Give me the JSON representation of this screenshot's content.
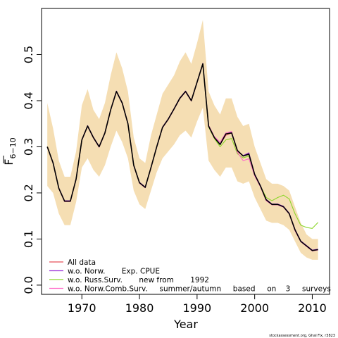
{
  "chart_data": {
    "type": "line",
    "xlabel": "Year",
    "ylabel_main": "F",
    "ylabel_sub": "6−10",
    "xlim": [
      1963,
      2013
    ],
    "ylim": [
      -0.02,
      0.6
    ],
    "x_ticks": [
      1970,
      1980,
      1990,
      2000,
      2010
    ],
    "y_ticks": [
      0.0,
      0.1,
      0.2,
      0.3,
      0.4,
      0.5
    ],
    "y_tick_labels": [
      "0.0",
      "0.1",
      "0.2",
      "0.3",
      "0.4",
      "0.5"
    ],
    "footer": "stockassessment.org, Ghal Fix, r3823",
    "band": {
      "color": "#f5deb3",
      "x": [
        1964,
        1965,
        1966,
        1967,
        1968,
        1969,
        1970,
        1971,
        1972,
        1973,
        1974,
        1975,
        1976,
        1977,
        1978,
        1979,
        1980,
        1981,
        1982,
        1983,
        1984,
        1985,
        1986,
        1987,
        1988,
        1989,
        1990,
        1991,
        1992,
        1993,
        1994,
        1995,
        1996,
        1997,
        1998,
        1999,
        2000,
        2001,
        2002,
        2003,
        2004,
        2005,
        2006,
        2007,
        2008,
        2009,
        2010,
        2011
      ],
      "upper": [
        0.395,
        0.34,
        0.27,
        0.235,
        0.235,
        0.29,
        0.39,
        0.425,
        0.38,
        0.36,
        0.395,
        0.455,
        0.505,
        0.47,
        0.42,
        0.32,
        0.275,
        0.265,
        0.325,
        0.37,
        0.415,
        0.435,
        0.455,
        0.485,
        0.505,
        0.48,
        0.525,
        0.575,
        0.42,
        0.39,
        0.37,
        0.405,
        0.405,
        0.365,
        0.345,
        0.35,
        0.3,
        0.265,
        0.23,
        0.22,
        0.22,
        0.215,
        0.205,
        0.17,
        0.135,
        0.11,
        0.1,
        0.1
      ],
      "lower": [
        0.215,
        0.2,
        0.155,
        0.13,
        0.13,
        0.18,
        0.255,
        0.275,
        0.25,
        0.235,
        0.26,
        0.3,
        0.335,
        0.31,
        0.275,
        0.205,
        0.175,
        0.165,
        0.205,
        0.245,
        0.275,
        0.29,
        0.305,
        0.325,
        0.335,
        0.32,
        0.355,
        0.385,
        0.27,
        0.25,
        0.235,
        0.255,
        0.255,
        0.225,
        0.22,
        0.225,
        0.19,
        0.165,
        0.14,
        0.135,
        0.135,
        0.13,
        0.12,
        0.095,
        0.07,
        0.06,
        0.055,
        0.055
      ]
    },
    "series": [
      {
        "name": "All data",
        "color": "#e8505b",
        "x": [
          1964,
          1965,
          1966,
          1967,
          1968,
          1969,
          1970,
          1971,
          1972,
          1973,
          1974,
          1975,
          1976,
          1977,
          1978,
          1979,
          1980,
          1981,
          1982,
          1983,
          1984,
          1985,
          1986,
          1987,
          1988,
          1989,
          1990,
          1991,
          1992,
          1993,
          1994,
          1995,
          1996,
          1997,
          1998,
          1999,
          2000,
          2001,
          2002,
          2003,
          2004,
          2005,
          2006,
          2007,
          2008,
          2009,
          2010,
          2011
        ],
        "values": [
          0.3,
          0.265,
          0.21,
          0.182,
          0.182,
          0.23,
          0.315,
          0.345,
          0.32,
          0.3,
          0.33,
          0.38,
          0.42,
          0.395,
          0.35,
          0.26,
          0.222,
          0.212,
          0.255,
          0.3,
          0.342,
          0.36,
          0.382,
          0.405,
          0.42,
          0.4,
          0.44,
          0.48,
          0.345,
          0.32,
          0.305,
          0.325,
          0.33,
          0.29,
          0.28,
          0.285,
          0.24,
          0.215,
          0.185,
          0.175,
          0.175,
          0.17,
          0.155,
          0.12,
          0.095,
          0.085,
          0.075,
          0.077
        ]
      },
      {
        "name": "w.o. Norw.       Exp. CPUE",
        "color": "#9b30d9",
        "x": [
          1964,
          1965,
          1966,
          1967,
          1968,
          1969,
          1970,
          1971,
          1972,
          1973,
          1974,
          1975,
          1976,
          1977,
          1978,
          1979,
          1980,
          1981,
          1982,
          1983,
          1984,
          1985,
          1986,
          1987,
          1988,
          1989,
          1990,
          1991,
          1992,
          1993,
          1994,
          1995,
          1996,
          1997,
          1998,
          1999,
          2000,
          2001,
          2002,
          2003,
          2004,
          2005,
          2006,
          2007,
          2008,
          2009,
          2010,
          2011
        ],
        "values": [
          0.3,
          0.266,
          0.211,
          0.183,
          0.183,
          0.231,
          0.316,
          0.346,
          0.321,
          0.301,
          0.331,
          0.381,
          0.421,
          0.396,
          0.351,
          0.261,
          0.223,
          0.213,
          0.256,
          0.301,
          0.343,
          0.361,
          0.383,
          0.406,
          0.421,
          0.401,
          0.441,
          0.481,
          0.346,
          0.321,
          0.306,
          0.327,
          0.332,
          0.291,
          0.281,
          0.287,
          0.241,
          0.216,
          0.186,
          0.176,
          0.176,
          0.171,
          0.156,
          0.121,
          0.096,
          0.086,
          0.076,
          0.078
        ]
      },
      {
        "name": "w.o. Russ.Surv.       new from       1992",
        "color": "#8bd62a",
        "x": [
          1964,
          1965,
          1966,
          1967,
          1968,
          1969,
          1970,
          1971,
          1972,
          1973,
          1974,
          1975,
          1976,
          1977,
          1978,
          1979,
          1980,
          1981,
          1982,
          1983,
          1984,
          1985,
          1986,
          1987,
          1988,
          1989,
          1990,
          1991,
          1992,
          1993,
          1994,
          1995,
          1996,
          1997,
          1998,
          1999,
          2000,
          2001,
          2002,
          2003,
          2004,
          2005,
          2006,
          2007,
          2008,
          2009,
          2010,
          2011
        ],
        "values": [
          0.3,
          0.265,
          0.21,
          0.182,
          0.182,
          0.23,
          0.315,
          0.345,
          0.32,
          0.3,
          0.33,
          0.38,
          0.42,
          0.395,
          0.35,
          0.26,
          0.222,
          0.212,
          0.255,
          0.3,
          0.342,
          0.36,
          0.382,
          0.405,
          0.42,
          0.4,
          0.44,
          0.48,
          0.343,
          0.318,
          0.3,
          0.315,
          0.318,
          0.285,
          0.276,
          0.28,
          0.238,
          0.215,
          0.19,
          0.183,
          0.19,
          0.195,
          0.187,
          0.155,
          0.13,
          0.125,
          0.123,
          0.136
        ]
      },
      {
        "name": "w.o. Norw.Comb.Surv.     summer/autumn     based     on    3     surveys",
        "color": "#ff69c8",
        "x": [
          1964,
          1965,
          1966,
          1967,
          1968,
          1969,
          1970,
          1971,
          1972,
          1973,
          1974,
          1975,
          1976,
          1977,
          1978,
          1979,
          1980,
          1981,
          1982,
          1983,
          1984,
          1985,
          1986,
          1987,
          1988,
          1989,
          1990,
          1991,
          1992,
          1993,
          1994,
          1995,
          1996,
          1997,
          1998,
          1999,
          2000,
          2001,
          2002,
          2003,
          2004,
          2005,
          2006,
          2007,
          2008,
          2009,
          2010,
          2011
        ],
        "values": [
          0.299,
          0.264,
          0.209,
          0.181,
          0.181,
          0.229,
          0.314,
          0.344,
          0.319,
          0.299,
          0.329,
          0.379,
          0.419,
          0.394,
          0.349,
          0.259,
          0.221,
          0.211,
          0.254,
          0.299,
          0.341,
          0.359,
          0.381,
          0.404,
          0.419,
          0.399,
          0.439,
          0.479,
          0.347,
          0.322,
          0.31,
          0.33,
          0.333,
          0.288,
          0.27,
          0.274,
          0.237,
          0.213,
          0.183,
          0.174,
          0.174,
          0.169,
          0.154,
          0.118,
          0.094,
          0.084,
          0.074,
          0.076
        ]
      },
      {
        "name": "",
        "color": "#000000",
        "x": [
          1964,
          1965,
          1966,
          1967,
          1968,
          1969,
          1970,
          1971,
          1972,
          1973,
          1974,
          1975,
          1976,
          1977,
          1978,
          1979,
          1980,
          1981,
          1982,
          1983,
          1984,
          1985,
          1986,
          1987,
          1988,
          1989,
          1990,
          1991,
          1992,
          1993,
          1994,
          1995,
          1996,
          1997,
          1998,
          1999,
          2000,
          2001,
          2002,
          2003,
          2004,
          2005,
          2006,
          2007,
          2008,
          2009,
          2010,
          2011
        ],
        "values": [
          0.3,
          0.265,
          0.21,
          0.182,
          0.182,
          0.23,
          0.315,
          0.345,
          0.32,
          0.3,
          0.33,
          0.38,
          0.42,
          0.395,
          0.35,
          0.26,
          0.222,
          0.212,
          0.255,
          0.3,
          0.342,
          0.36,
          0.382,
          0.405,
          0.42,
          0.4,
          0.44,
          0.48,
          0.345,
          0.32,
          0.305,
          0.328,
          0.33,
          0.292,
          0.28,
          0.284,
          0.24,
          0.215,
          0.185,
          0.175,
          0.175,
          0.17,
          0.155,
          0.12,
          0.095,
          0.085,
          0.075,
          0.077
        ]
      }
    ]
  }
}
